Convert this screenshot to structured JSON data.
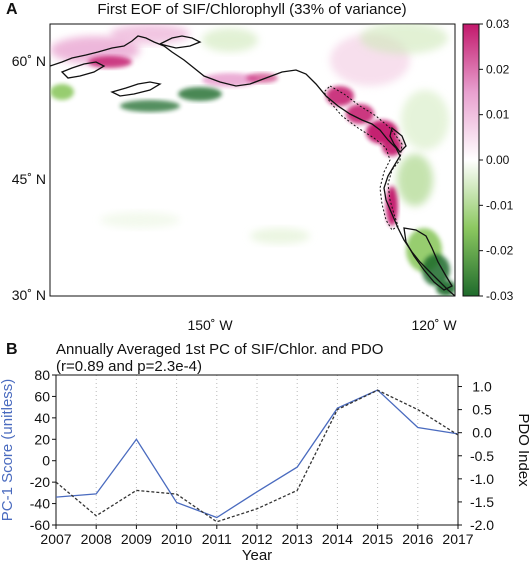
{
  "panels": {
    "a": "A",
    "b": "B"
  },
  "chart_data": [
    {
      "type": "heatmap",
      "title": "First EOF of SIF/Chlorophyll (33% of variance)",
      "x_ticks": [
        "150˚ W",
        "120˚ W"
      ],
      "y_ticks": [
        "60˚ N",
        "45˚ N",
        "30˚ N"
      ],
      "colorbar": {
        "ticks": [
          "0.03",
          "0.02",
          "0.01",
          "0.00",
          "-0.01",
          "-0.02",
          "-0.03"
        ],
        "range": [
          -0.03,
          0.03
        ],
        "colors": {
          "neg_max": "#1f6b2c",
          "neg_mid": "#8cc860",
          "zero": "#ffffff",
          "pos_mid": "#e8a0cf",
          "pos_max": "#c2186b"
        }
      },
      "grid": false
    },
    {
      "type": "line",
      "title": "Annually Averaged 1st PC of SIF/Chlor. and PDO",
      "subtitle": "(r=0.89 and p=2.3e-4)",
      "xlabel": "Year",
      "ylabel": "PC-1 Score (unitless)",
      "y2label": "PDO Index",
      "x": [
        2007,
        2008,
        2009,
        2010,
        2011,
        2012,
        2013,
        2014,
        2015,
        2016,
        2017
      ],
      "x_tick_labels": [
        "2007",
        "2008",
        "2009",
        "2010",
        "2011",
        "2012",
        "2013",
        "2014",
        "2015",
        "2016",
        "2017"
      ],
      "ylim": [
        -60,
        80
      ],
      "y_ticks": [
        "80",
        "60",
        "40",
        "20",
        "0",
        "-20",
        "-40",
        "-60"
      ],
      "y2lim": [
        -2.0,
        1.25
      ],
      "y2_ticks": [
        "1.0",
        "0.5",
        "0.0",
        "-0.5",
        "-1.0",
        "-1.5",
        "-2.0"
      ],
      "grid": "vertical dotted",
      "series": [
        {
          "axis": "left",
          "style": "solid",
          "color": "#4a6bbf",
          "values": [
            -34,
            -31,
            20,
            -39,
            -53,
            -29,
            -6,
            49,
            66,
            31,
            25
          ]
        },
        {
          "axis": "right",
          "style": "dashed",
          "color": "#333333",
          "values": [
            -1.07,
            -1.8,
            -1.25,
            -1.33,
            -1.93,
            -1.65,
            -1.25,
            0.5,
            0.92,
            0.5,
            -0.05
          ]
        }
      ]
    }
  ]
}
